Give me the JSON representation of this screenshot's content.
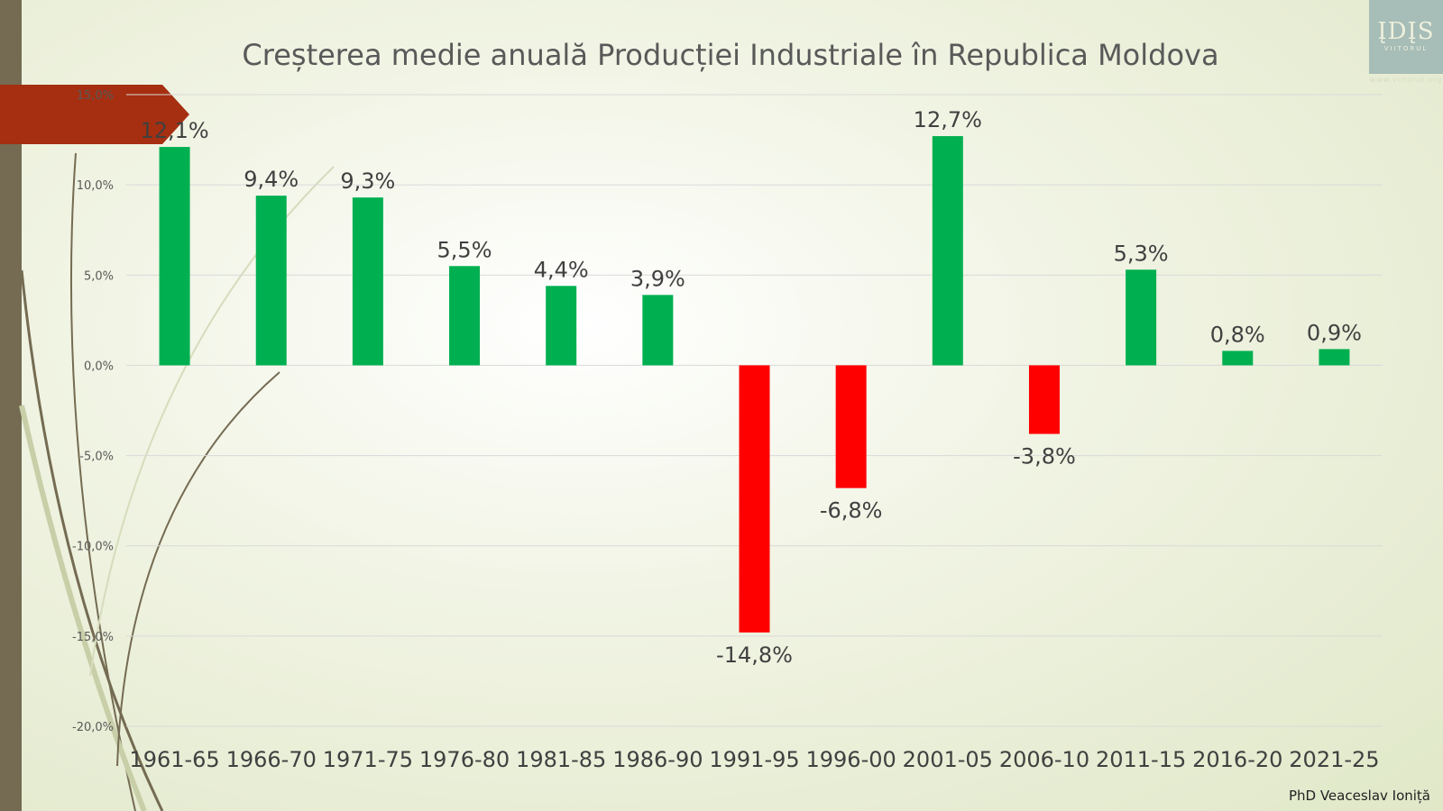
{
  "chart_data": {
    "type": "bar",
    "title": "Creșterea medie anuală Producției Industriale în Republica Moldova",
    "categories": [
      "1961-65",
      "1966-70",
      "1971-75",
      "1976-80",
      "1981-85",
      "1986-90",
      "1991-95",
      "1996-00",
      "2001-05",
      "2006-10",
      "2011-15",
      "2016-20",
      "2021-25"
    ],
    "values": [
      12.1,
      9.4,
      9.3,
      5.5,
      4.4,
      3.9,
      -14.8,
      -6.8,
      12.7,
      -3.8,
      5.3,
      0.8,
      0.9
    ],
    "data_labels": [
      "12,1%",
      "9,4%",
      "9,3%",
      "5,5%",
      "4,4%",
      "3,9%",
      "-14,8%",
      "-6,8%",
      "12,7%",
      "-3,8%",
      "5,3%",
      "0,8%",
      "0,9%"
    ],
    "ylim": [
      -20,
      15
    ],
    "yticks": [
      15,
      10,
      5,
      0,
      -5,
      -10,
      -15,
      -20
    ],
    "ytick_labels": [
      "15,0%",
      "10,0%",
      "5,0%",
      "0,0%",
      "-5,0%",
      "-10,0%",
      "-15,0%",
      "-20,0%"
    ],
    "grid": true,
    "colors": {
      "positive": "#00b050",
      "negative": "#ff0000"
    }
  },
  "logo": {
    "text": "IDIS",
    "subtext": "VIITORUL",
    "url": "www.viitorul.org"
  },
  "author": "PhD Veaceslav Ioniță"
}
